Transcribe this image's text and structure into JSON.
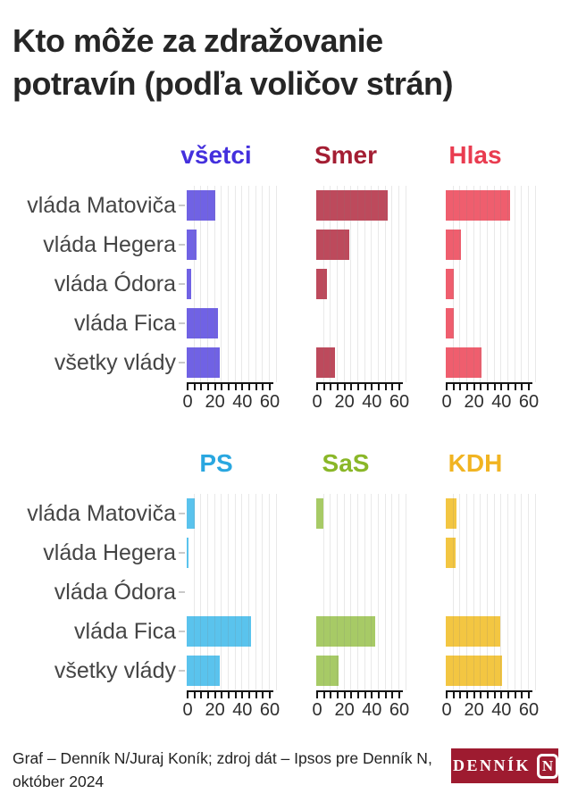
{
  "title": {
    "line1": "Kto môže za zdražovanie",
    "line2": "potravín (podľa voličov strán)"
  },
  "chart_data": {
    "type": "bar",
    "orientation": "horizontal",
    "layout": "small-multiples 2 rows x 3 cols",
    "categories": [
      "vláda Matoviča",
      "vláda Hegera",
      "vláda Ódora",
      "vláda Fica",
      "všetky vlády"
    ],
    "x_ticks": [
      0,
      20,
      40,
      60
    ],
    "minor_tick_step": 5,
    "xlim": [
      0,
      65
    ],
    "grid": true,
    "groups": [
      {
        "name": "všetci",
        "label_color": "#4430dd",
        "bar_color": "#7062e4",
        "values": [
          21,
          7,
          3,
          23,
          24
        ]
      },
      {
        "name": "Smer",
        "label_color": "#a41e33",
        "bar_color": "#bd4a5c",
        "values": [
          52,
          24,
          8,
          0,
          14
        ]
      },
      {
        "name": "Hlas",
        "label_color": "#e93c50",
        "bar_color": "#ef5e6e",
        "values": [
          47,
          11,
          6,
          6,
          26
        ]
      },
      {
        "name": "PS",
        "label_color": "#2aa7e0",
        "bar_color": "#5ac3ed",
        "values": [
          6,
          1,
          0,
          47,
          24
        ]
      },
      {
        "name": "SaS",
        "label_color": "#8ab728",
        "bar_color": "#a7ca66",
        "values": [
          5,
          0,
          0,
          43,
          16
        ]
      },
      {
        "name": "KDH",
        "label_color": "#f1b422",
        "bar_color": "#f3c642",
        "values": [
          8,
          7,
          0,
          40,
          41
        ]
      }
    ]
  },
  "footer": {
    "credit_lines": [
      "Graf – Denník N/Juraj Koník; zdroj dát – Ipsos pre Denník N,",
      "október 2024"
    ],
    "logo": {
      "text": "DENNÍK",
      "mark": "N",
      "bg_color": "#9e1b30"
    }
  }
}
